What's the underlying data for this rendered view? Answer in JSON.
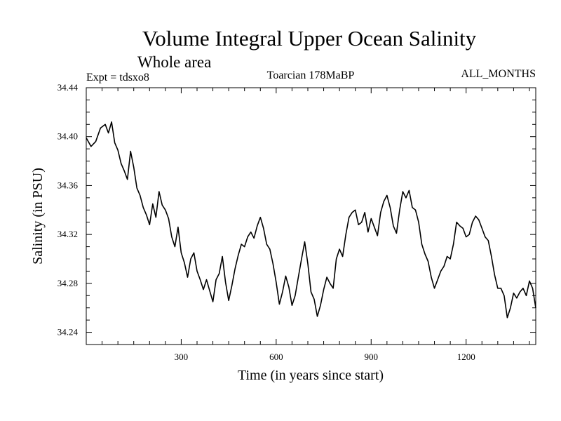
{
  "chart_data": {
    "type": "line",
    "title": "Volume Integral Upper Ocean Salinity",
    "subtitle": "Whole area",
    "experiment_label": "Expt = tdsxo8",
    "period_label": "Toarcian 178MaBP",
    "months_label": "ALL_MONTHS",
    "xlabel": "Time (in years since start)",
    "ylabel": "Salinity (in PSU)",
    "xlim": [
      0,
      1420
    ],
    "ylim": [
      34.23,
      34.44
    ],
    "xticks": [
      300,
      600,
      900,
      1200
    ],
    "xtick_labels": [
      "300",
      "600",
      "900",
      "1200"
    ],
    "yticks": [
      34.24,
      34.28,
      34.32,
      34.36,
      34.4,
      34.44
    ],
    "ytick_labels": [
      "34.24",
      "34.28",
      "34.32",
      "34.36",
      "34.40",
      "34.44"
    ],
    "grid": false,
    "series": [
      {
        "name": "Salinity",
        "color": "#000000",
        "x": [
          0,
          15,
          30,
          45,
          60,
          70,
          80,
          90,
          100,
          110,
          120,
          130,
          140,
          150,
          160,
          170,
          180,
          190,
          200,
          210,
          220,
          230,
          240,
          250,
          260,
          270,
          280,
          290,
          300,
          310,
          320,
          330,
          340,
          350,
          360,
          370,
          380,
          390,
          400,
          410,
          420,
          430,
          440,
          450,
          460,
          470,
          480,
          490,
          500,
          510,
          520,
          530,
          540,
          550,
          560,
          570,
          580,
          590,
          600,
          610,
          620,
          630,
          640,
          650,
          660,
          670,
          680,
          690,
          700,
          710,
          720,
          730,
          740,
          750,
          760,
          770,
          780,
          790,
          800,
          810,
          820,
          830,
          840,
          850,
          860,
          870,
          880,
          890,
          900,
          910,
          920,
          930,
          940,
          950,
          960,
          970,
          980,
          990,
          1000,
          1010,
          1020,
          1030,
          1040,
          1050,
          1060,
          1070,
          1080,
          1090,
          1100,
          1110,
          1120,
          1130,
          1140,
          1150,
          1160,
          1170,
          1180,
          1190,
          1200,
          1210,
          1220,
          1230,
          1240,
          1250,
          1260,
          1270,
          1280,
          1290,
          1300,
          1310,
          1320,
          1330,
          1340,
          1350,
          1360,
          1370,
          1380,
          1390,
          1400,
          1410,
          1420
        ],
        "values": [
          34.399,
          34.392,
          34.396,
          34.407,
          34.41,
          34.403,
          34.412,
          34.395,
          34.389,
          34.378,
          34.372,
          34.365,
          34.388,
          34.375,
          34.358,
          34.352,
          34.342,
          34.336,
          34.328,
          34.345,
          34.334,
          34.355,
          34.344,
          34.34,
          34.333,
          34.318,
          34.31,
          34.326,
          34.305,
          34.297,
          34.285,
          34.3,
          34.305,
          34.29,
          34.283,
          34.275,
          34.283,
          34.274,
          34.265,
          34.283,
          34.288,
          34.302,
          34.281,
          34.266,
          34.278,
          34.292,
          34.303,
          34.312,
          34.31,
          34.318,
          34.322,
          34.317,
          34.327,
          34.334,
          34.325,
          34.312,
          34.308,
          34.296,
          34.281,
          34.263,
          34.273,
          34.286,
          34.277,
          34.262,
          34.27,
          34.285,
          34.3,
          34.314,
          34.296,
          34.273,
          34.267,
          34.253,
          34.262,
          34.275,
          34.285,
          34.28,
          34.276,
          34.3,
          34.308,
          34.302,
          34.32,
          34.334,
          34.338,
          34.34,
          34.328,
          34.33,
          34.338,
          34.322,
          34.333,
          34.326,
          34.319,
          34.338,
          34.347,
          34.352,
          34.342,
          34.327,
          34.321,
          34.34,
          34.355,
          34.35,
          34.356,
          34.342,
          34.34,
          34.33,
          34.312,
          34.304,
          34.298,
          34.285,
          34.276,
          34.283,
          34.29,
          34.294,
          34.302,
          34.3,
          34.312,
          34.33,
          34.327,
          34.325,
          34.318,
          34.32,
          34.33,
          34.335,
          34.332,
          34.325,
          34.318,
          34.315,
          34.302,
          34.287,
          34.276,
          34.276,
          34.27,
          34.252,
          34.26,
          34.272,
          34.268,
          34.273,
          34.276,
          34.27,
          34.282,
          34.276,
          34.26
        ]
      }
    ]
  }
}
